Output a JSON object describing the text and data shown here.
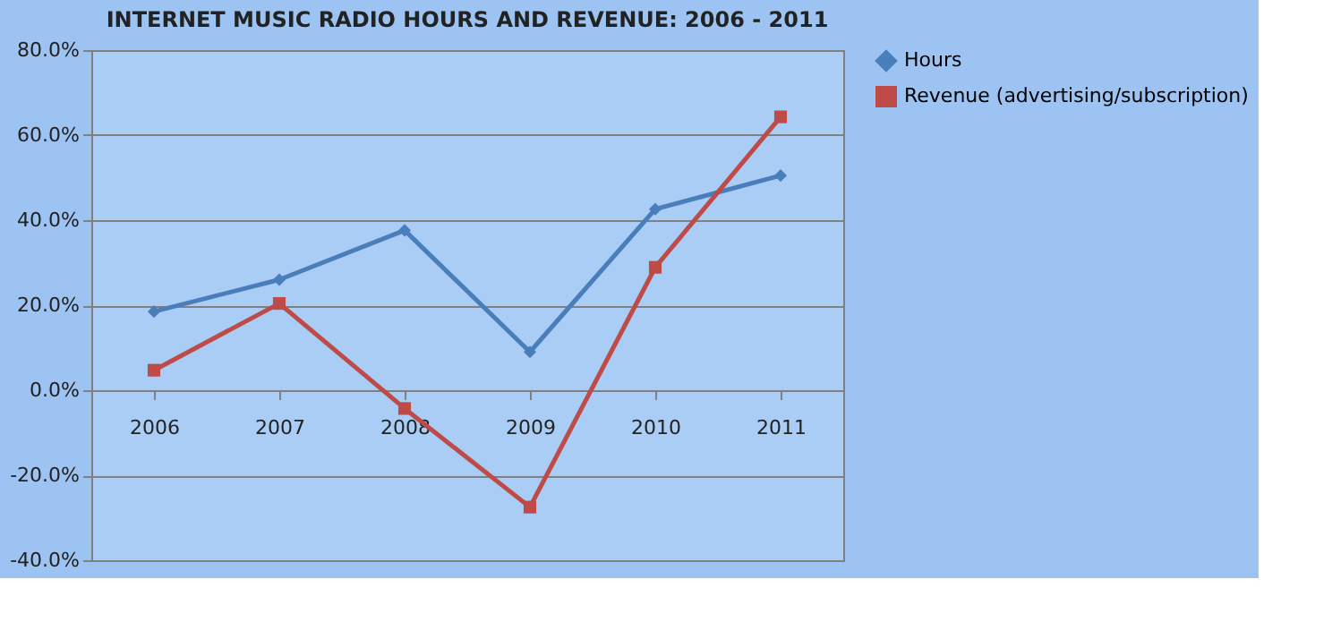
{
  "chart_data": {
    "type": "line",
    "title": "INTERNET MUSIC RADIO HOURS AND REVENUE: 2006 - 2011",
    "categories": [
      "2006",
      "2007",
      "2008",
      "2009",
      "2010",
      "2011"
    ],
    "series": [
      {
        "name": "Hours",
        "color": "#4a7ebb",
        "marker": "diamond",
        "values": [
          18.5,
          26,
          37.6,
          9,
          42.6,
          50.5
        ]
      },
      {
        "name": "Revenue (advertising/subscription)",
        "color": "#be4b48",
        "marker": "square",
        "values": [
          4.7,
          20.4,
          -4.3,
          -27.5,
          28.9,
          64.3
        ]
      }
    ],
    "ylim": [
      -40,
      80
    ],
    "yticks": [
      {
        "value": -40,
        "label": "-40.0%"
      },
      {
        "value": -20,
        "label": "-20.0%"
      },
      {
        "value": 0,
        "label": "0.0%"
      },
      {
        "value": 20,
        "label": "20.0%"
      },
      {
        "value": 40,
        "label": "40.0%"
      },
      {
        "value": 60,
        "label": "60.0%"
      },
      {
        "value": 80,
        "label": "80.0%"
      }
    ],
    "grid": "y",
    "legend": "right",
    "line_style": "solid"
  }
}
